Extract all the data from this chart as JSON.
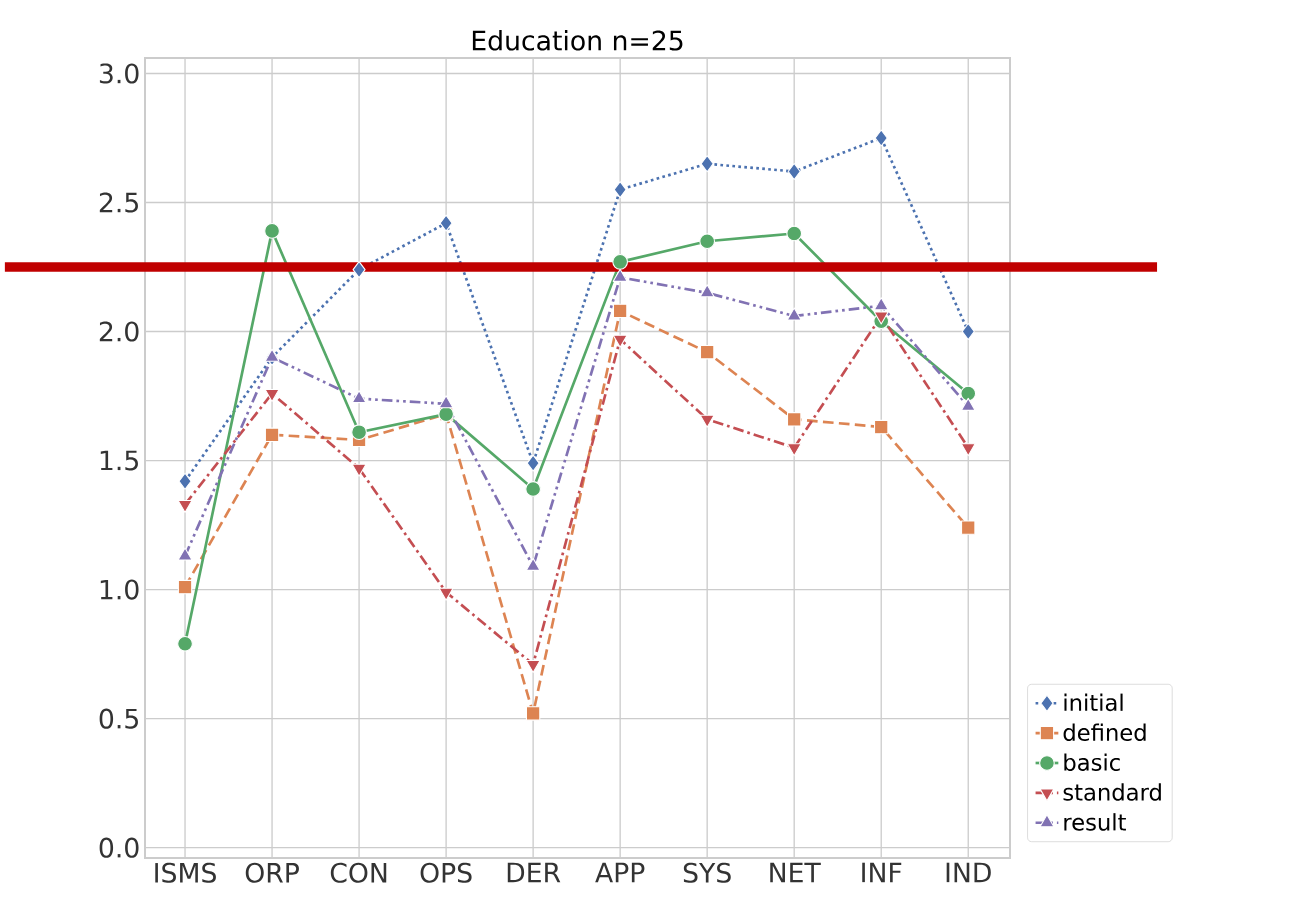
{
  "chart_data": {
    "type": "line",
    "title": "Education n=25",
    "categories": [
      "ISMS",
      "ORP",
      "CON",
      "OPS",
      "DER",
      "APP",
      "SYS",
      "NET",
      "INF",
      "IND"
    ],
    "series": [
      {
        "name": "initial",
        "color": "#4c72b0",
        "marker": "diamond",
        "line_style": "dotted",
        "values": [
          1.42,
          1.9,
          2.24,
          2.42,
          1.49,
          2.55,
          2.65,
          2.62,
          2.75,
          2.0
        ]
      },
      {
        "name": "defined",
        "color": "#dd8452",
        "marker": "square",
        "line_style": "dashed",
        "values": [
          1.01,
          1.6,
          1.58,
          1.68,
          0.52,
          2.08,
          1.92,
          1.66,
          1.63,
          1.24
        ]
      },
      {
        "name": "basic",
        "color": "#55a868",
        "marker": "circle",
        "line_style": "solid",
        "values": [
          0.79,
          2.39,
          1.61,
          1.68,
          1.39,
          2.27,
          2.35,
          2.38,
          2.04,
          1.76
        ]
      },
      {
        "name": "standard",
        "color": "#c44e52",
        "marker": "triangle_down",
        "line_style": "dashdot",
        "values": [
          1.33,
          1.76,
          1.47,
          0.99,
          0.71,
          1.97,
          1.66,
          1.55,
          2.06,
          1.55
        ]
      },
      {
        "name": "result",
        "color": "#8172b3",
        "marker": "triangle",
        "line_style": "dashdotdot",
        "values": [
          1.13,
          1.9,
          1.74,
          1.72,
          1.09,
          2.21,
          2.15,
          2.06,
          2.1,
          1.71
        ]
      }
    ],
    "ylim": [
      -0.04,
      3.06
    ],
    "yticks": [
      {
        "value": 0,
        "label": "0.0"
      },
      {
        "value": 0.5,
        "label": "0.5"
      },
      {
        "value": 1,
        "label": "1.0"
      },
      {
        "value": 1.5,
        "label": "1.5"
      },
      {
        "value": 2,
        "label": "2.0"
      },
      {
        "value": 2.5,
        "label": "2.5"
      },
      {
        "value": 3,
        "label": "3.0"
      }
    ],
    "grid": true,
    "legend": "bottom right",
    "ref_lines": [
      {
        "axis": "y",
        "value": 2.25,
        "color": "#c00000"
      }
    ]
  }
}
